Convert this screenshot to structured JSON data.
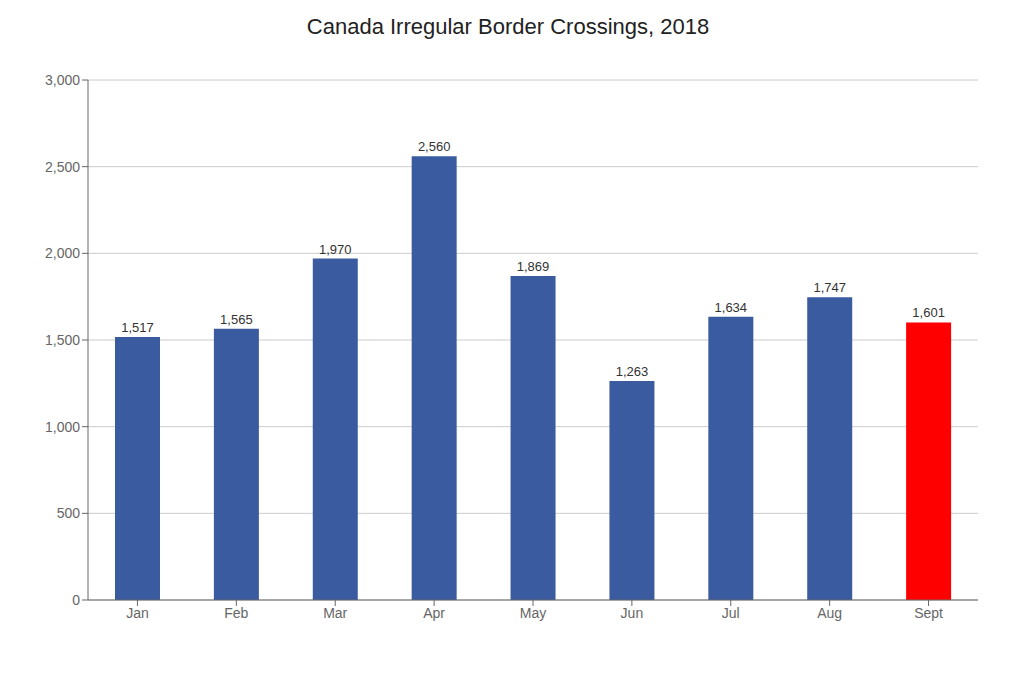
{
  "chart_data": {
    "type": "bar",
    "title": "Canada Irregular Border Crossings, 2018",
    "categories": [
      "Jan",
      "Feb",
      "Mar",
      "Apr",
      "May",
      "Jun",
      "Jul",
      "Aug",
      "Sept"
    ],
    "values": [
      1517,
      1565,
      1970,
      2560,
      1869,
      1263,
      1634,
      1747,
      1601
    ],
    "value_labels": [
      "1,517",
      "1,565",
      "1,970",
      "2,560",
      "1,869",
      "1,263",
      "1,634",
      "1,747",
      "1,601"
    ],
    "data_labels": true,
    "colors": [
      "#3A5BA0",
      "#3A5BA0",
      "#3A5BA0",
      "#3A5BA0",
      "#3A5BA0",
      "#3A5BA0",
      "#3A5BA0",
      "#3A5BA0",
      "#FF0000"
    ],
    "ylim": [
      0,
      3000
    ],
    "yticks": [
      0,
      500,
      {
        "value": 1000,
        "label": "1,000"
      },
      {
        "value": 1500,
        "label": "1,500"
      },
      {
        "value": 2000,
        "label": "2,000"
      },
      {
        "value": 2500,
        "label": "2,500"
      },
      {
        "value": 3000,
        "label": "3,000"
      }
    ],
    "grid": true
  }
}
